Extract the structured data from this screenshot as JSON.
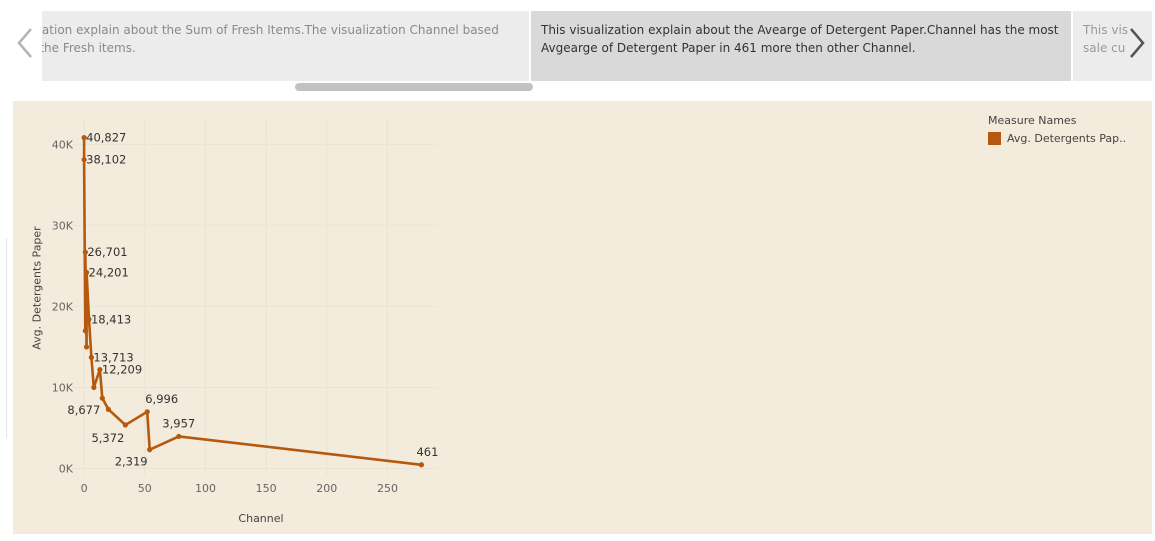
{
  "story_points": [
    {
      "line1": "ualization explain about the Sum of Fresh Items.The visualization Channel based",
      "line2": "rt to the Fresh items."
    },
    {
      "line1": "This visualization explain about the Avearge of Detergent Paper.Channel has the most",
      "line2": "Avgearge of Detergent Paper in 461 more then other Channel."
    },
    {
      "line1": "This vis",
      "line2": "sale cu"
    }
  ],
  "nav": {
    "prev_glyph": "‹",
    "next_glyph": "›"
  },
  "legend": {
    "title": "Measure Names",
    "label": "Avg. Detergents Pap..",
    "color": "#b5590e"
  },
  "chart_data": {
    "type": "line",
    "xlabel": "Channel",
    "ylabel": "Avg. Detergents Paper",
    "xlim": [
      -10,
      290
    ],
    "ylim": [
      -800,
      43000
    ],
    "x_ticks": [
      {
        "value": 0,
        "label": "0"
      },
      {
        "value": 50,
        "label": "50"
      },
      {
        "value": 100,
        "label": "100"
      },
      {
        "value": 150,
        "label": "150"
      },
      {
        "value": 200,
        "label": "200"
      },
      {
        "value": 250,
        "label": "250"
      }
    ],
    "y_ticks": [
      {
        "value": 0,
        "label": "0K"
      },
      {
        "value": 10000,
        "label": "10K"
      },
      {
        "value": 20000,
        "label": "20K"
      },
      {
        "value": 30000,
        "label": "30K"
      },
      {
        "value": 40000,
        "label": "40K"
      }
    ],
    "color": "#b5590e",
    "series": [
      {
        "points": [
          {
            "x": 0,
            "y": 40827,
            "label": "40,827",
            "lpos": "right"
          },
          {
            "x": 0,
            "y": 38102,
            "label": "38,102",
            "lpos": "right"
          },
          {
            "x": 1,
            "y": 17000
          },
          {
            "x": 1,
            "y": 26701,
            "label": "26,701",
            "lpos": "right"
          },
          {
            "x": 2,
            "y": 15000
          },
          {
            "x": 2,
            "y": 24201,
            "label": "24,201",
            "lpos": "right"
          },
          {
            "x": 4,
            "y": 18413,
            "label": "18,413",
            "lpos": "right"
          },
          {
            "x": 6,
            "y": 13713,
            "label": "13,713",
            "lpos": "right"
          },
          {
            "x": 8,
            "y": 10000
          },
          {
            "x": 13,
            "y": 12209,
            "label": "12,209",
            "lpos": "right"
          },
          {
            "x": 15,
            "y": 8677,
            "label": "8,677",
            "lpos": "left-below"
          },
          {
            "x": 20,
            "y": 7300
          },
          {
            "x": 34,
            "y": 5372,
            "label": "5,372",
            "lpos": "below"
          },
          {
            "x": 52,
            "y": 6996,
            "label": "6,996",
            "lpos": "above-right"
          },
          {
            "x": 54,
            "y": 2319,
            "label": "2,319",
            "lpos": "left-below"
          },
          {
            "x": 78,
            "y": 3957,
            "label": "3,957",
            "lpos": "above"
          },
          {
            "x": 278,
            "y": 461,
            "label": "461",
            "lpos": "above"
          }
        ]
      }
    ]
  }
}
